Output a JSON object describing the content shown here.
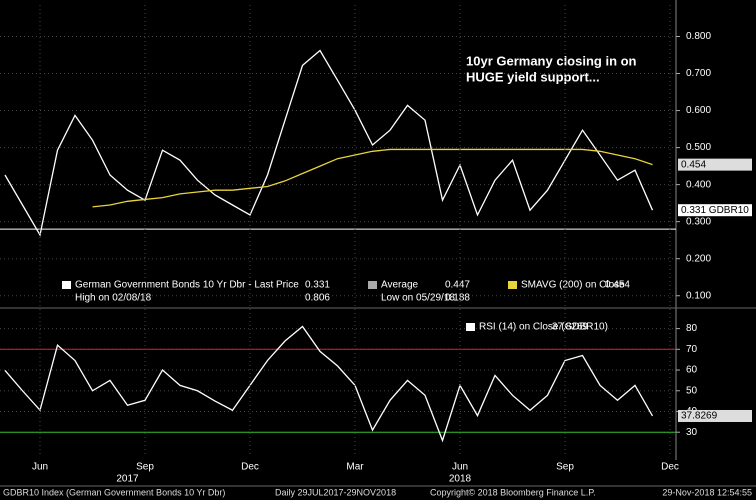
{
  "chart_data": [
    {
      "type": "line",
      "annotation": [
        "10yr Germany closing in on",
        "HUGE yield support..."
      ],
      "series": [
        {
          "name": "German Government Bonds 10 Yr Dbr",
          "color": "#ffffff",
          "tag": "0.331 GDBR10",
          "values": [
            0.426,
            0.345,
            0.264,
            0.493,
            0.587,
            0.52,
            0.426,
            0.385,
            0.358,
            0.493,
            0.466,
            0.412,
            0.372,
            0.345,
            0.318,
            0.426,
            0.574,
            0.722,
            0.762,
            0.682,
            0.601,
            0.507,
            0.547,
            0.614,
            0.574,
            0.358,
            0.453,
            0.318,
            0.412,
            0.466,
            0.331,
            0.385,
            0.466,
            0.547,
            0.48,
            0.412,
            0.439,
            0.331,
            null
          ]
        },
        {
          "name": "SMAVG (200)",
          "color": "#e6d43a",
          "tag": "0.454",
          "values": [
            null,
            null,
            null,
            null,
            null,
            0.34,
            0.345,
            0.355,
            0.36,
            0.365,
            0.375,
            0.38,
            0.385,
            0.385,
            0.39,
            0.395,
            0.41,
            0.43,
            0.45,
            0.47,
            0.48,
            0.49,
            0.495,
            0.495,
            0.495,
            0.495,
            0.495,
            0.495,
            0.495,
            0.495,
            0.495,
            0.495,
            0.495,
            0.495,
            0.49,
            0.48,
            0.47,
            0.454,
            null
          ]
        }
      ],
      "hlines": [
        {
          "value": 0.28,
          "color": "#ffffff"
        }
      ],
      "legend": [
        {
          "text": "German Government Bonds 10 Yr Dbr - Last Price",
          "value": "0.331"
        },
        {
          "text": "Average",
          "value": "0.447"
        },
        {
          "text": "SMAVG (200)  on Close",
          "value": "0.454"
        },
        {
          "text": "High on 02/08/18",
          "value": "0.806"
        },
        {
          "text": "Low on 05/29/18",
          "value": "0.188"
        }
      ],
      "ylim": [
        0.075,
        0.885
      ],
      "yticks": [
        {
          "value": 0.1,
          "label": "0.100"
        },
        {
          "value": 0.2,
          "label": "0.200"
        },
        {
          "value": 0.3,
          "label": "0.300"
        },
        {
          "value": 0.4,
          "label": "0.400"
        },
        {
          "value": 0.5,
          "label": "0.500"
        },
        {
          "value": 0.6,
          "label": "0.600"
        },
        {
          "value": 0.7,
          "label": "0.700"
        },
        {
          "value": 0.8,
          "label": "0.800"
        }
      ],
      "grid": true
    },
    {
      "type": "line",
      "categories": [
        null,
        null,
        "Jun",
        null,
        null,
        null,
        null,
        null,
        "Sep",
        null,
        null,
        null,
        null,
        null,
        "Dec",
        null,
        null,
        null,
        null,
        null,
        "Mar",
        null,
        null,
        null,
        null,
        null,
        "Jun",
        null,
        null,
        null,
        null,
        null,
        "Sep",
        null,
        null,
        null,
        null,
        null,
        "Dec"
      ],
      "years": [
        null,
        null,
        null,
        null,
        null,
        null,
        null,
        "2017",
        null,
        null,
        null,
        null,
        null,
        null,
        null,
        null,
        null,
        null,
        null,
        null,
        null,
        null,
        null,
        null,
        null,
        null,
        "2018",
        null,
        null,
        null,
        null,
        null,
        null,
        null,
        null,
        null,
        null,
        null,
        null
      ],
      "series": [
        {
          "name": "RSI (14)  on Close (GDBR10)",
          "color": "#ffffff",
          "tag": "37.8269",
          "values": [
            59.8,
            50,
            40.6,
            72,
            64.6,
            50,
            55,
            43,
            45.4,
            60,
            52.6,
            50,
            45,
            40.6,
            52.6,
            64.6,
            74,
            81,
            69,
            62,
            52.6,
            31,
            45.4,
            55,
            47.8,
            26,
            52.6,
            38,
            57.4,
            47.8,
            40.6,
            47.8,
            64.6,
            67,
            52.6,
            45.4,
            52.6,
            37.8269,
            null
          ]
        }
      ],
      "legend": [
        {
          "text": "RSI (14)  on Close (GDBR10)",
          "value": "37.8269"
        }
      ],
      "hlines": [
        {
          "value": 70,
          "color": "#e02020"
        },
        {
          "value": 30,
          "color": "#30c030"
        }
      ],
      "ylim": [
        19,
        88
      ],
      "yticks": [
        30,
        40,
        50,
        60,
        70,
        80
      ],
      "grid": true
    }
  ],
  "footer": [
    "GDBR10 Index (German Government Bonds 10 Yr Dbr)",
    "Daily 29JUL2017-29NOV2018",
    "Copyright© 2018 Bloomberg Finance L.P.",
    "29-Nov-2018 12:54:55"
  ]
}
